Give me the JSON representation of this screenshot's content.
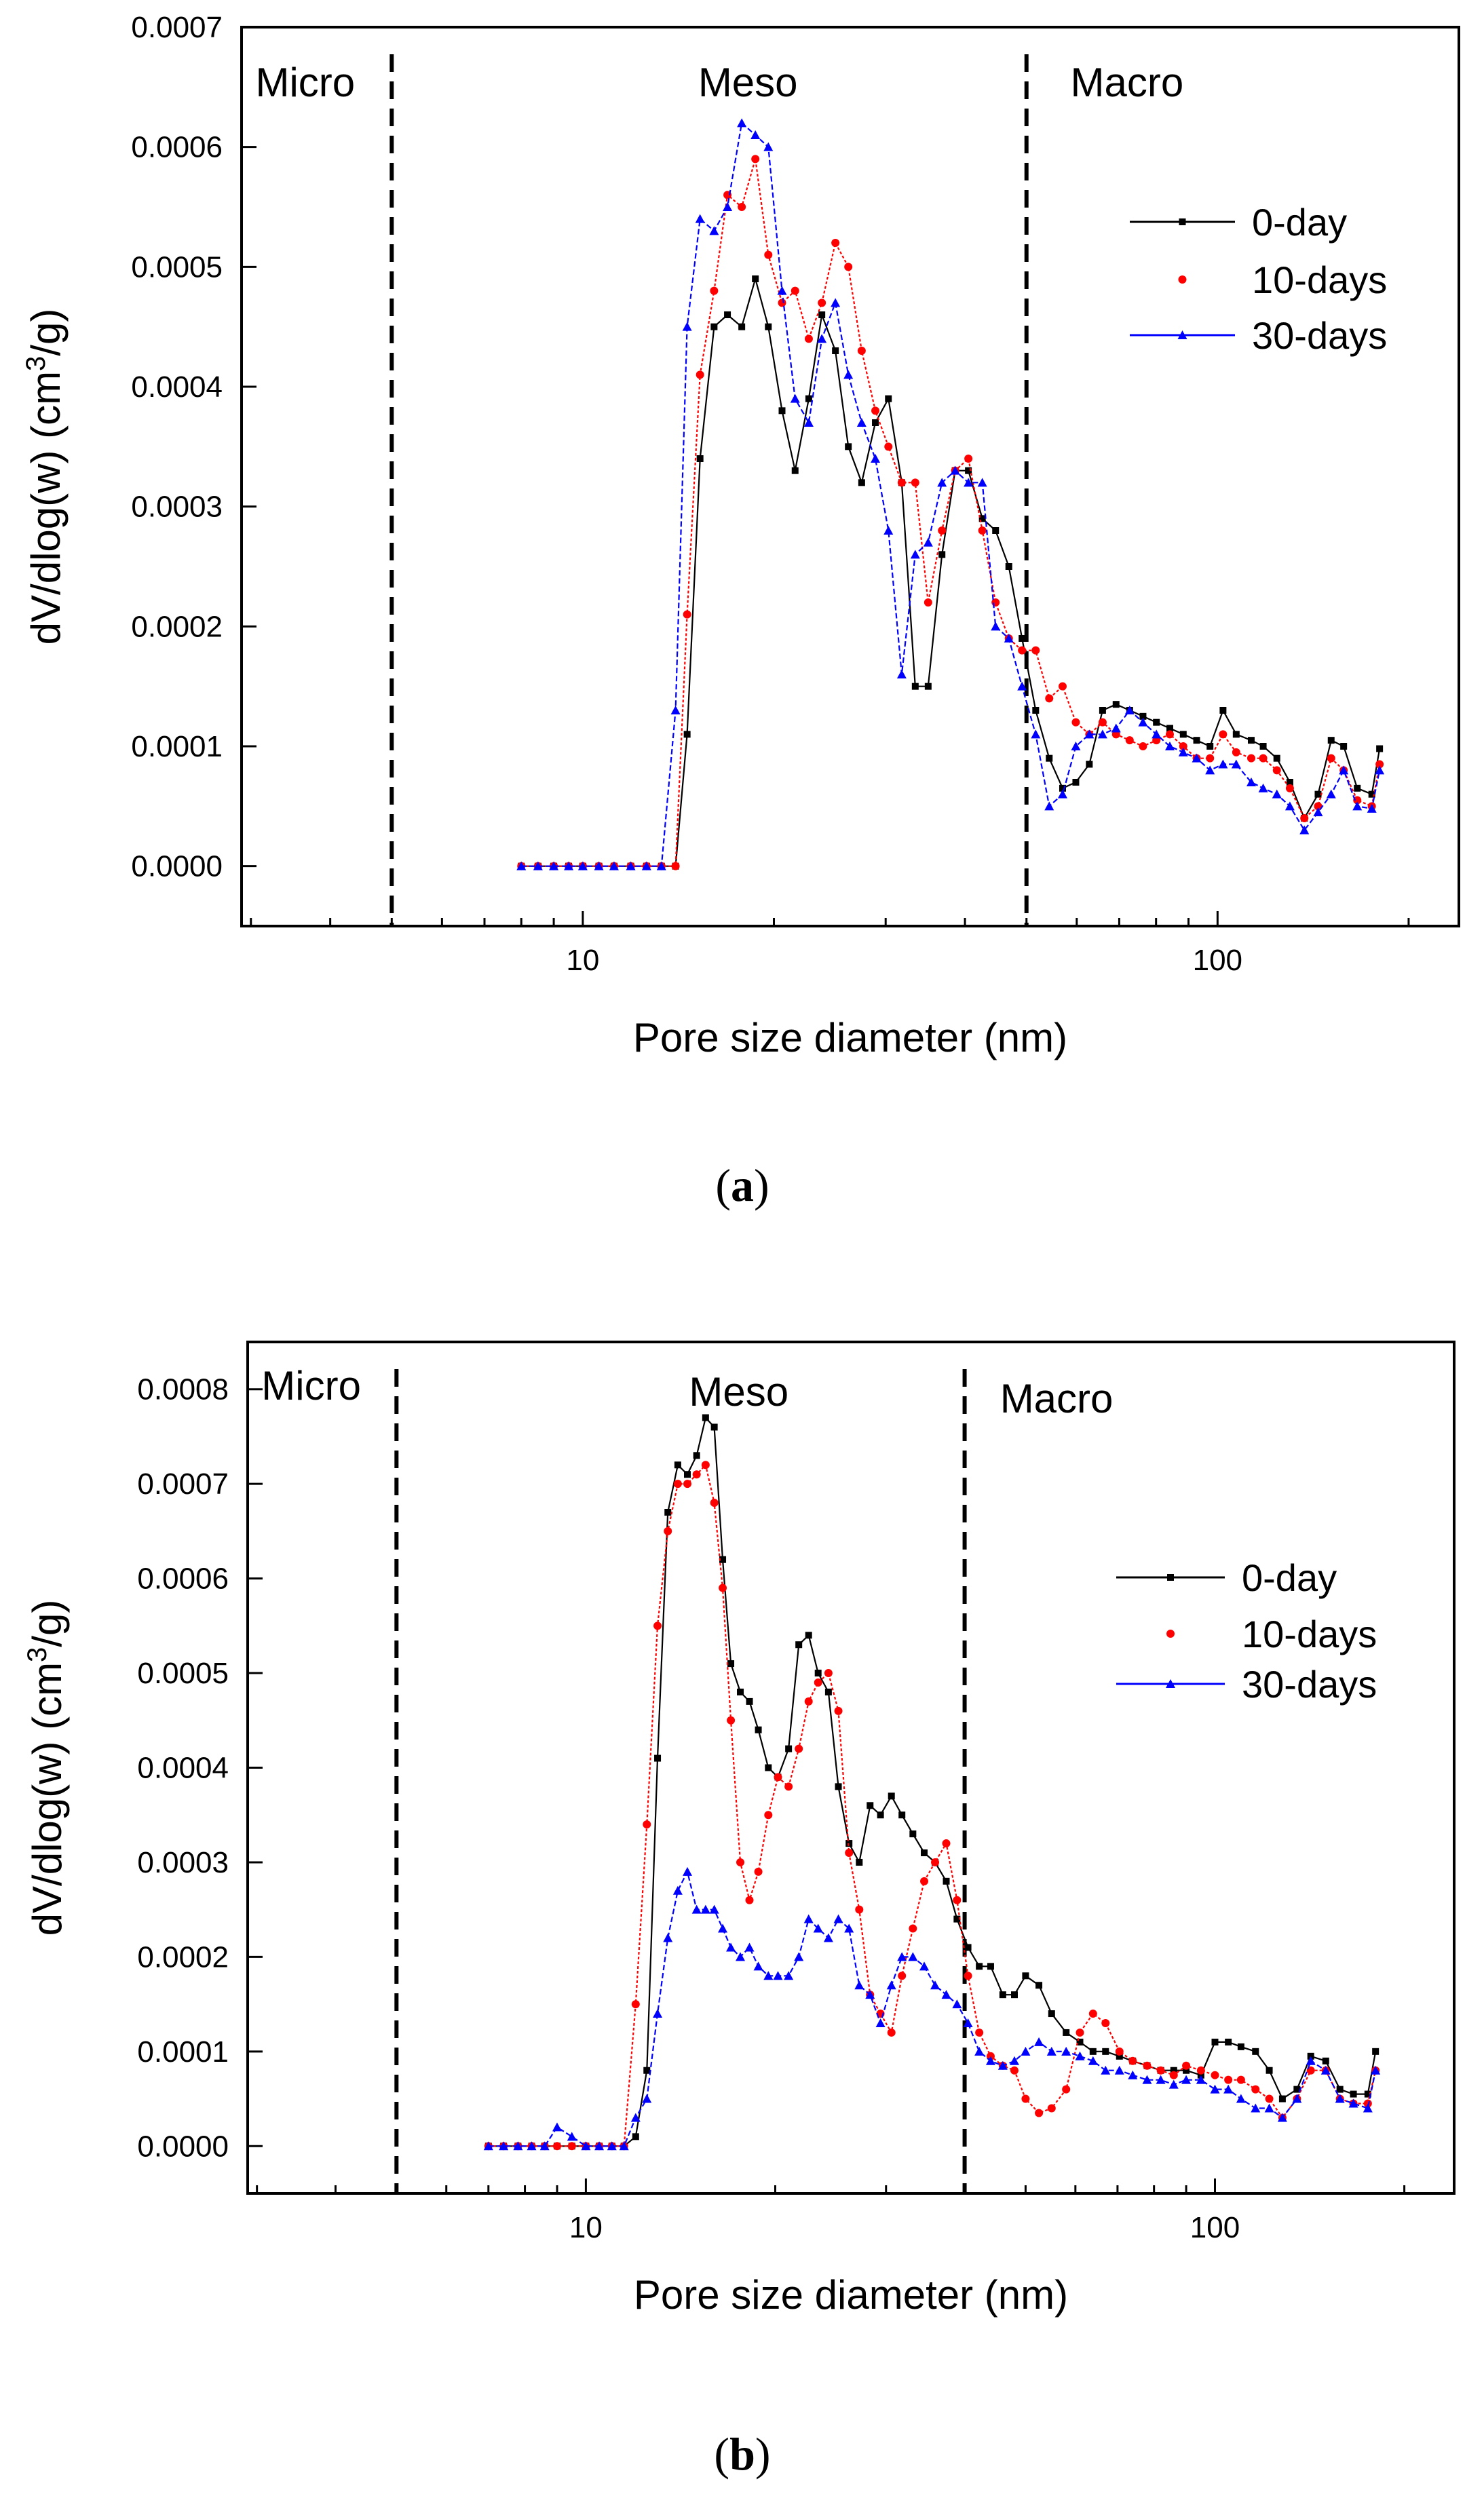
{
  "chart_data": [
    {
      "panel": "a",
      "type": "line",
      "xscale": "log",
      "xlabel": "Pore size diameter (nm)",
      "ylabel": "dV/dlog(w) (cm³/g)",
      "xlim": [
        2.9,
        240
      ],
      "ylim": [
        -5e-05,
        0.0007
      ],
      "yticks": [
        "0.0000",
        "0.0001",
        "0.0002",
        "0.0003",
        "0.0004",
        "0.0005",
        "0.0006",
        "0.0007"
      ],
      "xticks": [
        "10",
        "100"
      ],
      "regions": [
        {
          "label": "Micro",
          "at": 3.05
        },
        {
          "label": "Meso",
          "at": 18.2
        },
        {
          "label": "Macro",
          "at": 72
        }
      ],
      "boundaries": [
        5,
        50
      ],
      "legend_position": "top-right",
      "series": [
        {
          "name": "0-day",
          "color": "#000000",
          "marker": "square",
          "x": [
            8,
            8.5,
            9,
            9.5,
            10,
            10.6,
            11.2,
            11.9,
            12.6,
            13.3,
            14,
            14.6,
            15.3,
            16.1,
            16.9,
            17.8,
            18.7,
            19.6,
            20.6,
            21.6,
            22.7,
            23.8,
            25,
            26.2,
            27.5,
            28.9,
            30.3,
            31.8,
            33.4,
            35,
            36.8,
            38.6,
            40.5,
            42.6,
            44.7,
            46.9,
            49.2,
            51.7,
            54.3,
            57,
            59.8,
            62.8,
            65.9,
            69.2,
            72.7,
            76.3,
            80.1,
            84.1,
            88.3,
            92.7,
            97.3,
            102,
            107,
            113,
            118,
            124,
            130,
            137,
            144,
            151,
            158,
            166,
            175,
            180
          ],
          "values": [
            0,
            0,
            0,
            0,
            0,
            0,
            0,
            0,
            0,
            0,
            0,
            0.00011,
            0.00034,
            0.00045,
            0.00046,
            0.00045,
            0.00049,
            0.00045,
            0.00038,
            0.00033,
            0.00039,
            0.00046,
            0.00043,
            0.00035,
            0.00032,
            0.00037,
            0.00039,
            0.00032,
            0.00015,
            0.00015,
            0.00026,
            0.00033,
            0.00033,
            0.00029,
            0.00028,
            0.00025,
            0.00019,
            0.00013,
            9e-05,
            6.5e-05,
            7e-05,
            8.5e-05,
            0.00013,
            0.000135,
            0.00013,
            0.000125,
            0.00012,
            0.000115,
            0.00011,
            0.000105,
            0.0001,
            0.00013,
            0.00011,
            0.000105,
            0.0001,
            9e-05,
            7e-05,
            4e-05,
            6e-05,
            0.000105,
            0.0001,
            6.5e-05,
            6e-05,
            9.8e-05
          ]
        },
        {
          "name": "10-days",
          "color": "#ff0000",
          "marker": "circle",
          "x": [
            8,
            8.5,
            9,
            9.5,
            10,
            10.6,
            11.2,
            11.9,
            12.6,
            13.3,
            14,
            14.6,
            15.3,
            16.1,
            16.9,
            17.8,
            18.7,
            19.6,
            20.6,
            21.6,
            22.7,
            23.8,
            25,
            26.2,
            27.5,
            28.9,
            30.3,
            31.8,
            33.4,
            35,
            36.8,
            38.6,
            40.5,
            42.6,
            44.7,
            46.9,
            49.2,
            51.7,
            54.3,
            57,
            59.8,
            62.8,
            65.9,
            69.2,
            72.7,
            76.3,
            80.1,
            84.1,
            88.3,
            92.7,
            97.3,
            102,
            107,
            113,
            118,
            124,
            130,
            137,
            144,
            151,
            158,
            166,
            175,
            180
          ],
          "values": [
            0,
            0,
            0,
            0,
            0,
            0,
            0,
            0,
            0,
            0,
            0,
            0.00021,
            0.00041,
            0.00048,
            0.00056,
            0.00055,
            0.00059,
            0.00051,
            0.00047,
            0.00048,
            0.00044,
            0.00047,
            0.00052,
            0.0005,
            0.00043,
            0.00038,
            0.00035,
            0.00032,
            0.00032,
            0.00022,
            0.00028,
            0.00033,
            0.00034,
            0.00028,
            0.00022,
            0.00019,
            0.00018,
            0.00018,
            0.00014,
            0.00015,
            0.00012,
            0.00011,
            0.00012,
            0.00011,
            0.000105,
            0.0001,
            0.000105,
            0.00011,
            0.0001,
            9e-05,
            9e-05,
            0.00011,
            9.5e-05,
            9e-05,
            9e-05,
            8e-05,
            6.5e-05,
            4e-05,
            5e-05,
            9e-05,
            8e-05,
            5.5e-05,
            5e-05,
            8.5e-05
          ]
        },
        {
          "name": "30-days",
          "color": "#0000ff",
          "marker": "triangle",
          "x": [
            8,
            8.5,
            9,
            9.5,
            10,
            10.6,
            11.2,
            11.9,
            12.6,
            13.3,
            14,
            14.6,
            15.3,
            16.1,
            16.9,
            17.8,
            18.7,
            19.6,
            20.6,
            21.6,
            22.7,
            23.8,
            25,
            26.2,
            27.5,
            28.9,
            30.3,
            31.8,
            33.4,
            35,
            36.8,
            38.6,
            40.5,
            42.6,
            44.7,
            46.9,
            49.2,
            51.7,
            54.3,
            57,
            59.8,
            62.8,
            65.9,
            69.2,
            72.7,
            76.3,
            80.1,
            84.1,
            88.3,
            92.7,
            97.3,
            102,
            107,
            113,
            118,
            124,
            130,
            137,
            144,
            151,
            158,
            166,
            175,
            180
          ],
          "values": [
            0,
            0,
            0,
            0,
            0,
            0,
            0,
            0,
            0,
            0,
            0.00013,
            0.00045,
            0.00054,
            0.00053,
            0.00055,
            0.00062,
            0.00061,
            0.0006,
            0.00048,
            0.00039,
            0.00037,
            0.00044,
            0.00047,
            0.00041,
            0.00037,
            0.00034,
            0.00028,
            0.00016,
            0.00026,
            0.00027,
            0.00032,
            0.00033,
            0.00032,
            0.00032,
            0.0002,
            0.00019,
            0.00015,
            0.00011,
            5e-05,
            6e-05,
            0.0001,
            0.00011,
            0.00011,
            0.000115,
            0.00013,
            0.00012,
            0.00011,
            0.0001,
            9.5e-05,
            9e-05,
            8e-05,
            8.5e-05,
            8.5e-05,
            7e-05,
            6.5e-05,
            6e-05,
            5e-05,
            3e-05,
            4.5e-05,
            6e-05,
            8e-05,
            5e-05,
            4.8e-05,
            8e-05
          ]
        }
      ]
    },
    {
      "panel": "b",
      "type": "line",
      "xscale": "log",
      "xlabel": "Pore size diameter (nm)",
      "ylabel": "dV/dlog(w) (cm³/g)",
      "xlim": [
        2.9,
        240
      ],
      "ylim": [
        -5e-05,
        0.00085
      ],
      "yticks": [
        "0.0000",
        "0.0001",
        "0.0002",
        "0.0003",
        "0.0004",
        "0.0005",
        "0.0006",
        "0.0007",
        "0.0008"
      ],
      "xticks": [
        "10",
        "100"
      ],
      "regions": [
        {
          "label": "Micro",
          "at": 3.05
        },
        {
          "label": "Meso",
          "at": 17.5
        },
        {
          "label": "Macro",
          "at": 56
        }
      ],
      "boundaries": [
        5,
        40
      ],
      "legend_position": "top-right",
      "series": [
        {
          "name": "0-day",
          "color": "#000000",
          "marker": "square",
          "x": [
            7,
            7.4,
            7.8,
            8.2,
            8.6,
            9.0,
            9.5,
            10,
            10.5,
            11,
            11.5,
            12,
            12.5,
            13,
            13.5,
            14,
            14.5,
            15,
            15.5,
            16,
            16.5,
            17,
            17.6,
            18.2,
            18.8,
            19.5,
            20.2,
            21,
            21.8,
            22.6,
            23.4,
            24.3,
            25.2,
            26.2,
            27.2,
            28.3,
            29.4,
            30.6,
            31.8,
            33.1,
            34.5,
            35.9,
            37.4,
            38.9,
            40.5,
            42.2,
            44,
            46,
            48,
            50,
            52.5,
            55,
            58,
            61,
            64,
            67,
            70.5,
            74,
            78,
            82,
            86,
            90,
            95,
            100,
            105,
            110,
            116,
            122,
            128,
            135,
            142,
            150,
            158,
            166,
            175,
            180
          ],
          "values": [
            0,
            0,
            0,
            0,
            0,
            0,
            0,
            0,
            0,
            0,
            0,
            1e-05,
            8e-05,
            0.00041,
            0.00067,
            0.00072,
            0.00071,
            0.00073,
            0.00077,
            0.00076,
            0.00062,
            0.00051,
            0.00048,
            0.00047,
            0.00044,
            0.0004,
            0.00039,
            0.00042,
            0.00053,
            0.00054,
            0.0005,
            0.00048,
            0.00038,
            0.00032,
            0.0003,
            0.00036,
            0.00035,
            0.00037,
            0.00035,
            0.00033,
            0.00031,
            0.0003,
            0.00028,
            0.00024,
            0.00021,
            0.00019,
            0.00019,
            0.00016,
            0.00016,
            0.00018,
            0.00017,
            0.00014,
            0.00012,
            0.00011,
            0.0001,
            0.0001,
            9.5e-05,
            9e-05,
            8.5e-05,
            8e-05,
            8e-05,
            8e-05,
            7.5e-05,
            0.00011,
            0.00011,
            0.000105,
            0.0001,
            8e-05,
            5e-05,
            6e-05,
            9.5e-05,
            9e-05,
            6e-05,
            5.5e-05,
            5.5e-05,
            0.0001
          ]
        },
        {
          "name": "10-days",
          "color": "#ff0000",
          "marker": "circle",
          "x": [
            7,
            7.4,
            7.8,
            8.2,
            8.6,
            9.0,
            9.5,
            10,
            10.5,
            11,
            11.5,
            12,
            12.5,
            13,
            13.5,
            14,
            14.5,
            15,
            15.5,
            16,
            16.5,
            17,
            17.6,
            18.2,
            18.8,
            19.5,
            20.2,
            21,
            21.8,
            22.6,
            23.4,
            24.3,
            25.2,
            26.2,
            27.2,
            28.3,
            29.4,
            30.6,
            31.8,
            33.1,
            34.5,
            35.9,
            37.4,
            38.9,
            40.5,
            42.2,
            44,
            46,
            48,
            50,
            52.5,
            55,
            58,
            61,
            64,
            67,
            70.5,
            74,
            78,
            82,
            86,
            90,
            95,
            100,
            105,
            110,
            116,
            122,
            128,
            135,
            142,
            150,
            158,
            166,
            175,
            180
          ],
          "values": [
            0,
            0,
            0,
            0,
            0,
            0,
            0,
            0,
            0,
            0,
            0,
            0.00015,
            0.00034,
            0.00055,
            0.00065,
            0.0007,
            0.0007,
            0.00071,
            0.00072,
            0.00068,
            0.00059,
            0.00045,
            0.0003,
            0.00026,
            0.00029,
            0.00035,
            0.00039,
            0.00038,
            0.00042,
            0.00047,
            0.00049,
            0.0005,
            0.00046,
            0.00031,
            0.00025,
            0.00016,
            0.00014,
            0.00012,
            0.00018,
            0.00023,
            0.00028,
            0.0003,
            0.00032,
            0.00026,
            0.00018,
            0.00012,
            9.5e-05,
            8.5e-05,
            8e-05,
            5e-05,
            3.5e-05,
            4e-05,
            6e-05,
            0.00012,
            0.00014,
            0.00013,
            0.0001,
            9e-05,
            8.5e-05,
            8e-05,
            7.5e-05,
            8.5e-05,
            8e-05,
            7.5e-05,
            7e-05,
            7e-05,
            6e-05,
            5e-05,
            3e-05,
            5e-05,
            8e-05,
            8e-05,
            5e-05,
            4.5e-05,
            4.5e-05,
            8e-05
          ]
        },
        {
          "name": "30-days",
          "color": "#0000ff",
          "marker": "triangle",
          "x": [
            7,
            7.4,
            7.8,
            8.2,
            8.6,
            9.0,
            9.5,
            10,
            10.5,
            11,
            11.5,
            12,
            12.5,
            13,
            13.5,
            14,
            14.5,
            15,
            15.5,
            16,
            16.5,
            17,
            17.6,
            18.2,
            18.8,
            19.5,
            20.2,
            21,
            21.8,
            22.6,
            23.4,
            24.3,
            25.2,
            26.2,
            27.2,
            28.3,
            29.4,
            30.6,
            31.8,
            33.1,
            34.5,
            35.9,
            37.4,
            38.9,
            40.5,
            42.2,
            44,
            46,
            48,
            50,
            52.5,
            55,
            58,
            61,
            64,
            67,
            70.5,
            74,
            78,
            82,
            86,
            90,
            95,
            100,
            105,
            110,
            116,
            122,
            128,
            135,
            142,
            150,
            158,
            166,
            175,
            180
          ],
          "values": [
            0,
            0,
            0,
            0,
            0,
            2e-05,
            1e-05,
            0,
            0,
            0,
            0,
            3e-05,
            5e-05,
            0.00014,
            0.00022,
            0.00027,
            0.00029,
            0.00025,
            0.00025,
            0.00025,
            0.00023,
            0.00021,
            0.0002,
            0.00021,
            0.00019,
            0.00018,
            0.00018,
            0.00018,
            0.0002,
            0.00024,
            0.00023,
            0.00022,
            0.00024,
            0.00023,
            0.00017,
            0.00016,
            0.00013,
            0.00017,
            0.0002,
            0.0002,
            0.00019,
            0.00017,
            0.00016,
            0.00015,
            0.00013,
            0.0001,
            9e-05,
            8.5e-05,
            9e-05,
            0.0001,
            0.00011,
            0.0001,
            0.0001,
            9.5e-05,
            9e-05,
            8e-05,
            8e-05,
            7.5e-05,
            7e-05,
            7e-05,
            6.5e-05,
            7e-05,
            7e-05,
            6e-05,
            6e-05,
            5e-05,
            4e-05,
            4e-05,
            3e-05,
            5e-05,
            9e-05,
            8e-05,
            5e-05,
            4.5e-05,
            4e-05,
            8e-05
          ]
        }
      ]
    }
  ],
  "captions": {
    "a": {
      "open": "(",
      "letter": "a",
      "close": ")"
    },
    "b": {
      "open": "(",
      "letter": "b",
      "close": ")"
    }
  }
}
